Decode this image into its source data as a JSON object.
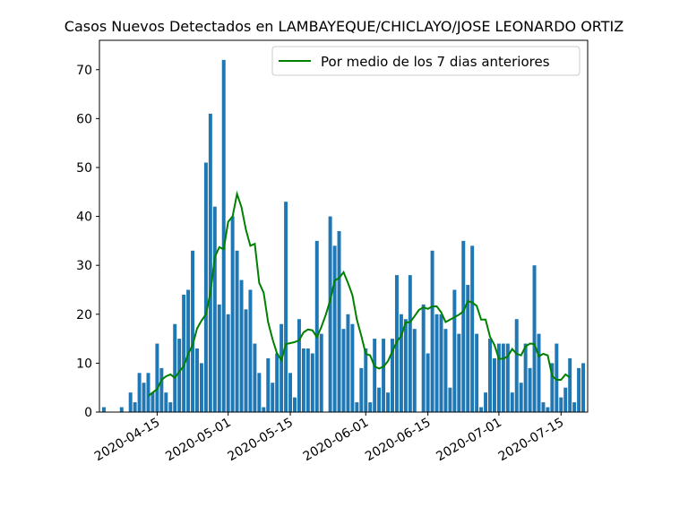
{
  "chart_data": {
    "type": "bar",
    "title": "Casos Nuevos Detectados en LAMBAYEQUE/CHICLAYO/JOSE LEONARDO ORTIZ",
    "xlabel": "",
    "ylabel": "",
    "x_start": "2020-04-03",
    "x_range": [
      "2020-04-02",
      "2020-07-21"
    ],
    "ylim": [
      0,
      76
    ],
    "y_ticks": [
      0,
      10,
      20,
      30,
      40,
      50,
      60,
      70
    ],
    "x_ticks": [
      "2020-04-15",
      "2020-05-01",
      "2020-05-15",
      "2020-06-01",
      "2020-06-15",
      "2020-07-01",
      "2020-07-15"
    ],
    "grid": false,
    "legend_position": "top-right",
    "series": [
      {
        "kind": "bar",
        "color": "#1f77b4",
        "values": [
          1,
          0,
          0,
          0,
          1,
          0,
          4,
          2,
          8,
          6,
          8,
          4,
          14,
          9,
          4,
          2,
          18,
          15,
          24,
          25,
          33,
          13,
          10,
          51,
          61,
          42,
          22,
          72,
          20,
          40,
          33,
          27,
          21,
          25,
          14,
          8,
          1,
          11,
          6,
          12,
          18,
          43,
          8,
          3,
          19,
          13,
          13,
          12,
          35,
          16,
          0,
          40,
          34,
          37,
          17,
          20,
          18,
          2,
          9,
          13,
          2,
          15,
          5,
          15,
          4,
          15,
          28,
          20,
          19,
          28,
          17,
          0,
          22,
          12,
          33,
          20,
          20,
          17,
          5,
          25,
          16,
          35,
          26,
          34,
          16,
          1,
          4,
          15,
          11,
          14,
          14,
          14,
          4,
          19,
          6,
          14,
          9,
          30,
          16,
          2,
          1,
          10,
          14,
          3,
          5,
          11,
          2,
          9,
          10
        ]
      },
      {
        "kind": "line",
        "name": "Por medio de los 7 dias anteriores",
        "color": "#008000",
        "start_index": 10,
        "values": [
          3.3,
          4.0,
          4.7,
          6.6,
          7.3,
          7.7,
          7.0,
          8.3,
          9.4,
          11.9,
          13.7,
          17.1,
          18.7,
          20.0,
          24.4,
          31.7,
          33.7,
          33.3,
          38.9,
          40.0,
          44.6,
          41.9,
          37.3,
          34.0,
          34.4,
          26.4,
          24.4,
          18.4,
          14.9,
          12.0,
          10.6,
          13.9,
          14.1,
          14.3,
          14.7,
          16.3,
          16.9,
          16.7,
          15.3,
          17.4,
          19.9,
          22.9,
          26.9,
          27.4,
          28.6,
          26.4,
          23.9,
          18.9,
          15.6,
          11.9,
          11.6,
          9.3,
          8.9,
          9.3,
          10.4,
          12.4,
          14.4,
          15.6,
          18.3,
          18.4,
          19.6,
          20.9,
          21.4,
          21.1,
          21.6,
          21.6,
          20.4,
          18.4,
          18.9,
          19.4,
          19.9,
          20.6,
          22.7,
          22.4,
          21.7,
          18.9,
          18.9,
          15.4,
          13.7,
          10.9,
          10.9,
          11.4,
          12.9,
          11.9,
          11.6,
          13.4,
          14.0,
          13.9,
          11.4,
          11.9,
          11.6,
          7.4,
          6.6,
          6.6,
          7.7,
          7.1
        ]
      }
    ]
  }
}
